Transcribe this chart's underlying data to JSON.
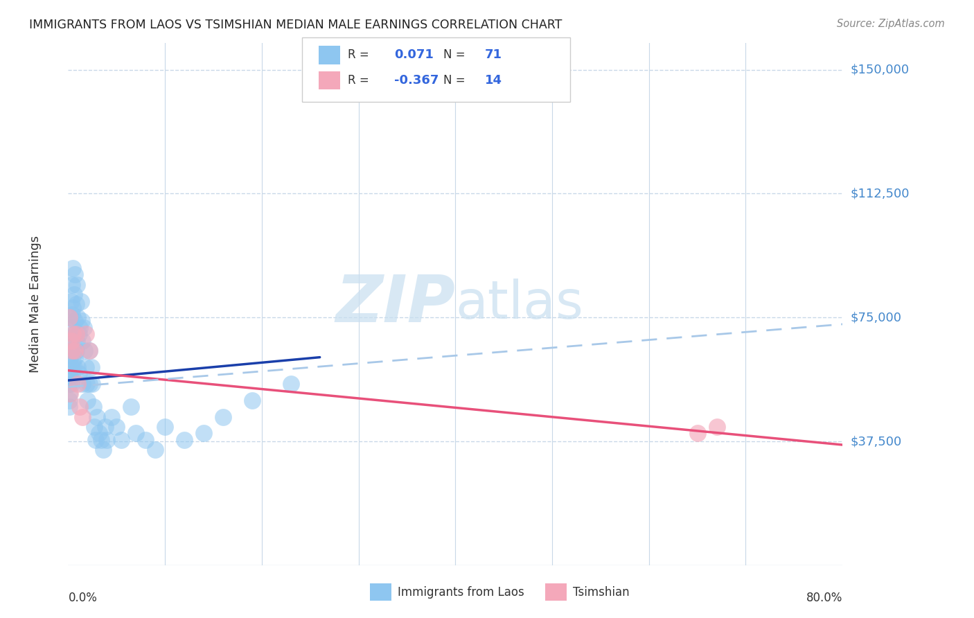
{
  "title": "IMMIGRANTS FROM LAOS VS TSIMSHIAN MEDIAN MALE EARNINGS CORRELATION CHART",
  "source": "Source: ZipAtlas.com",
  "ylabel": "Median Male Earnings",
  "y_ticks": [
    37500,
    75000,
    112500,
    150000
  ],
  "y_tick_labels": [
    "$37,500",
    "$75,000",
    "$112,500",
    "$150,000"
  ],
  "x_min": 0.0,
  "x_max": 0.8,
  "y_min": 0,
  "y_max": 158000,
  "blue_color": "#8EC6F0",
  "pink_color": "#F4A8BA",
  "blue_line_color": "#1A3FAA",
  "pink_line_color": "#E8507A",
  "dashed_line_color": "#A8C8E8",
  "watermark_zip": "ZIP",
  "watermark_atlas": "atlas",
  "blue_dots_x": [
    0.001,
    0.001,
    0.001,
    0.001,
    0.001,
    0.002,
    0.002,
    0.002,
    0.002,
    0.003,
    0.003,
    0.003,
    0.003,
    0.003,
    0.004,
    0.004,
    0.004,
    0.004,
    0.005,
    0.005,
    0.005,
    0.006,
    0.006,
    0.006,
    0.007,
    0.007,
    0.007,
    0.008,
    0.008,
    0.009,
    0.009,
    0.01,
    0.01,
    0.011,
    0.011,
    0.012,
    0.013,
    0.014,
    0.015,
    0.015,
    0.016,
    0.017,
    0.018,
    0.019,
    0.02,
    0.022,
    0.022,
    0.024,
    0.025,
    0.026,
    0.027,
    0.028,
    0.03,
    0.032,
    0.034,
    0.036,
    0.038,
    0.04,
    0.045,
    0.05,
    0.055,
    0.065,
    0.07,
    0.08,
    0.09,
    0.1,
    0.12,
    0.14,
    0.16,
    0.19,
    0.23
  ],
  "blue_dots_y": [
    57000,
    55000,
    52000,
    50000,
    48000,
    75000,
    68000,
    63000,
    57000,
    80000,
    72000,
    65000,
    60000,
    55000,
    85000,
    76000,
    69000,
    58000,
    90000,
    78000,
    62000,
    82000,
    70000,
    60000,
    88000,
    74000,
    63000,
    79000,
    65000,
    85000,
    68000,
    75000,
    60000,
    70000,
    58000,
    72000,
    80000,
    74000,
    68000,
    55000,
    72000,
    65000,
    60000,
    55000,
    50000,
    65000,
    55000,
    60000,
    55000,
    48000,
    42000,
    38000,
    45000,
    40000,
    38000,
    35000,
    42000,
    38000,
    45000,
    42000,
    38000,
    48000,
    40000,
    38000,
    35000,
    42000,
    38000,
    40000,
    45000,
    50000,
    55000
  ],
  "pink_dots_x": [
    0.001,
    0.002,
    0.003,
    0.004,
    0.005,
    0.007,
    0.008,
    0.01,
    0.012,
    0.015,
    0.018,
    0.022,
    0.65,
    0.67
  ],
  "pink_dots_y": [
    75000,
    52000,
    68000,
    65000,
    70000,
    65000,
    70000,
    55000,
    48000,
    45000,
    70000,
    65000,
    40000,
    42000
  ],
  "blue_trend_x0": 0.0,
  "blue_trend_x1": 0.26,
  "blue_trend_y0": 56000,
  "blue_trend_y1": 63000,
  "pink_trend_x0": 0.0,
  "pink_trend_x1": 0.8,
  "pink_trend_y0": 59000,
  "pink_trend_y1": 36500,
  "dashed_trend_x0": 0.0,
  "dashed_trend_x1": 0.8,
  "dashed_trend_y0": 54000,
  "dashed_trend_y1": 73000,
  "legend_r1_val": "0.071",
  "legend_n1_val": "71",
  "legend_r2_val": "-0.367",
  "legend_n2_val": "14"
}
